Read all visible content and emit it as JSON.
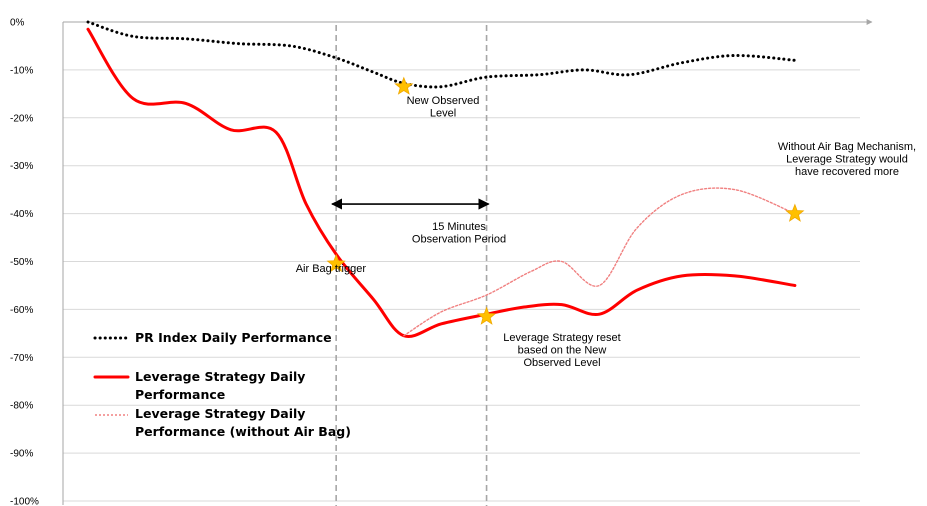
{
  "chart_data": {
    "type": "line",
    "title": "",
    "xlabel": "",
    "ylabel": "",
    "ylim": [
      -100,
      0
    ],
    "y_tick_labels": [
      "0%",
      "-10%",
      "-20%",
      "-30%",
      "-40%",
      "-50%",
      "-60%",
      "-70%",
      "-80%",
      "-90%",
      "-100%"
    ],
    "y_ticks": [
      0,
      -10,
      -20,
      -30,
      -40,
      -50,
      -60,
      -70,
      -80,
      -90,
      -100
    ],
    "x_range": [
      0,
      100
    ],
    "grid": "horizontal",
    "legend_position": "bottom-left",
    "series": [
      {
        "name": "PR Index Daily Performance",
        "color": "#000000",
        "style": "dotted",
        "x": [
          0,
          6,
          13,
          20,
          27,
          33,
          38,
          42,
          47,
          53,
          60,
          66,
          72,
          79,
          86,
          94
        ],
        "values": [
          0,
          -3,
          -3.5,
          -4.5,
          -5,
          -7.5,
          -10.5,
          -12.8,
          -13.5,
          -11.5,
          -11,
          -10,
          -11,
          -8.5,
          -7,
          -8
        ]
      },
      {
        "name": "Leverage Strategy Daily Performance",
        "color": "#ff0000",
        "style": "solid",
        "x": [
          0,
          6,
          13,
          19,
          25,
          29,
          33,
          38,
          42,
          47,
          53,
          58,
          63,
          68,
          73,
          79,
          86,
          94
        ],
        "values": [
          -1.5,
          -16,
          -17,
          -22.5,
          -23,
          -38,
          -48.5,
          -58,
          -65.5,
          -63,
          -61,
          -59.5,
          -59,
          -61,
          -56,
          -53,
          -53,
          -55
        ]
      },
      {
        "name": "Leverage Strategy Daily Performance (without Air Bag)",
        "color": "#f08080",
        "style": "dotted",
        "x": [
          42,
          47,
          53,
          59,
          63,
          68,
          73,
          79,
          86,
          94
        ],
        "values": [
          -65.5,
          -60.5,
          -57,
          -52,
          -50,
          -55,
          -43,
          -36,
          -35,
          -40
        ]
      }
    ],
    "markers": [
      {
        "name": "Air Bag trigger",
        "x": 33,
        "y": -50.5
      },
      {
        "name": "New Observed Level",
        "x": 42,
        "y": -13.5
      },
      {
        "name": "Leverage Strategy reset based on the New Observed Level",
        "x": 53,
        "y": -61.5
      },
      {
        "name": "Without Air Bag Mechanism",
        "x": 94,
        "y": -40
      }
    ],
    "vertical_lines": [
      {
        "x": 33,
        "color": "#a6a6a6",
        "style": "dashed"
      },
      {
        "x": 53,
        "color": "#a6a6a6",
        "style": "dashed"
      }
    ],
    "interval_arrow": {
      "x_start": 33,
      "x_end": 53,
      "y": -38
    },
    "annotations": [
      {
        "id": "new_observed_level",
        "lines": [
          "New Observed",
          "Level"
        ]
      },
      {
        "id": "observation_period",
        "lines": [
          "15 Minutes",
          "Observation Period"
        ]
      },
      {
        "id": "air_bag_trigger",
        "lines": [
          "Air Bag trigger"
        ]
      },
      {
        "id": "reset",
        "lines": [
          "Leverage Strategy reset",
          "based on the New",
          "Observed Level"
        ]
      },
      {
        "id": "without_air_bag",
        "lines": [
          "Without Air Bag Mechanism,",
          "Leverage Strategy would",
          "have recovered more"
        ]
      }
    ],
    "legend": [
      {
        "lines": [
          "PR Index Daily Performance"
        ]
      },
      {
        "lines": [
          "Leverage Strategy Daily",
          "Performance"
        ]
      },
      {
        "lines": [
          "Leverage Strategy Daily",
          "Performance (without Air Bag)"
        ]
      }
    ],
    "colors": {
      "grid": "#d9d9d9",
      "axis": "#a6a6a6",
      "star_fill": "#ffc000",
      "star_stroke": "#f0a800"
    }
  }
}
